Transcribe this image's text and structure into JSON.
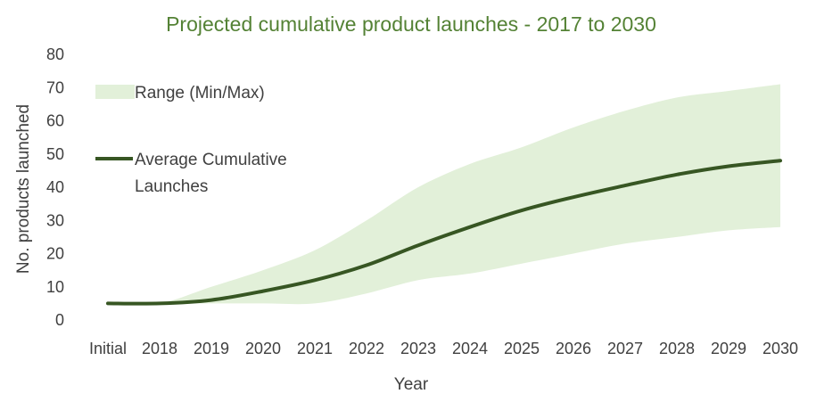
{
  "chart_data": {
    "type": "area",
    "title": "Projected cumulative product launches - 2017 to 2030",
    "xlabel": "Year",
    "ylabel": "No. products launched",
    "categories": [
      "Initial",
      "2018",
      "2019",
      "2020",
      "2021",
      "2022",
      "2023",
      "2024",
      "2025",
      "2026",
      "2027",
      "2028",
      "2029",
      "2030"
    ],
    "ylim": [
      0,
      80
    ],
    "yticks": [
      0,
      10,
      20,
      30,
      40,
      50,
      60,
      70,
      80
    ],
    "grid": false,
    "legend_position": "top-left",
    "series": [
      {
        "name": "Range (Min/Max)",
        "kind": "band",
        "color": "#e2f0d9",
        "min": [
          5,
          5,
          5,
          5,
          5,
          8,
          12,
          14,
          17,
          20,
          23,
          25,
          27,
          28
        ],
        "max": [
          5,
          5,
          10,
          15,
          21,
          30,
          40,
          47,
          52,
          58,
          63,
          67,
          69,
          71
        ]
      },
      {
        "name": "Average Cumulative Launches",
        "legend_lines": [
          "Average Cumulative",
          "Launches"
        ],
        "kind": "line",
        "color": "#375623",
        "values": [
          5,
          5,
          6,
          8.7,
          12,
          16.5,
          22.5,
          28,
          33,
          37,
          40.5,
          43.8,
          46.3,
          48
        ]
      }
    ]
  }
}
